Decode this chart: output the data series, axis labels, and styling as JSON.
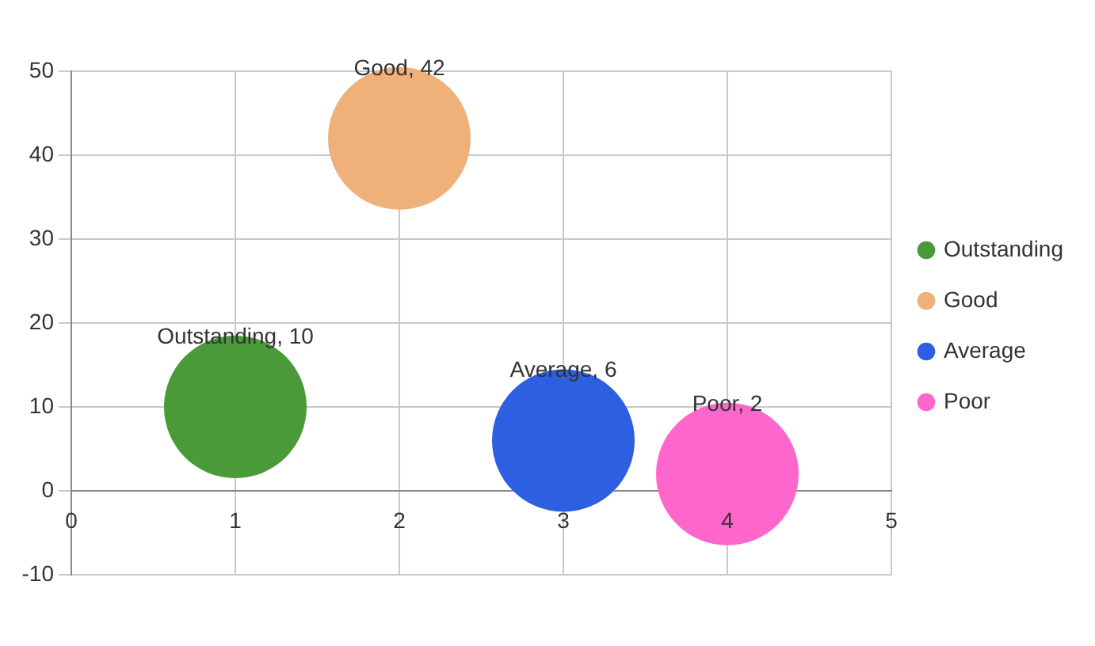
{
  "chart_data": {
    "type": "bubble",
    "xlim": [
      0,
      5
    ],
    "xticks": [
      0,
      1,
      2,
      3,
      4,
      5
    ],
    "ylim": [
      -10,
      50
    ],
    "yticks": [
      -10,
      0,
      10,
      20,
      30,
      40,
      50
    ],
    "grid": true,
    "legend": "right",
    "marker": "circle",
    "series": [
      {
        "name": "Outstanding",
        "color": "#4a9a3a",
        "x": [
          1
        ],
        "values": [
          10
        ],
        "sizes": [
          1
        ],
        "value_labels": [
          "Outstanding, 10"
        ]
      },
      {
        "name": "Good",
        "color": "#f0b07a",
        "x": [
          2
        ],
        "values": [
          42
        ],
        "sizes": [
          1
        ],
        "value_labels": [
          "Good, 42"
        ]
      },
      {
        "name": "Average",
        "color": "#2e5fe0",
        "x": [
          3
        ],
        "values": [
          6
        ],
        "sizes": [
          1
        ],
        "value_labels": [
          "Average, 6"
        ]
      },
      {
        "name": "Poor",
        "color": "#ff66cc",
        "x": [
          4
        ],
        "values": [
          2
        ],
        "sizes": [
          1
        ],
        "value_labels": [
          "Poor, 2"
        ]
      }
    ]
  }
}
